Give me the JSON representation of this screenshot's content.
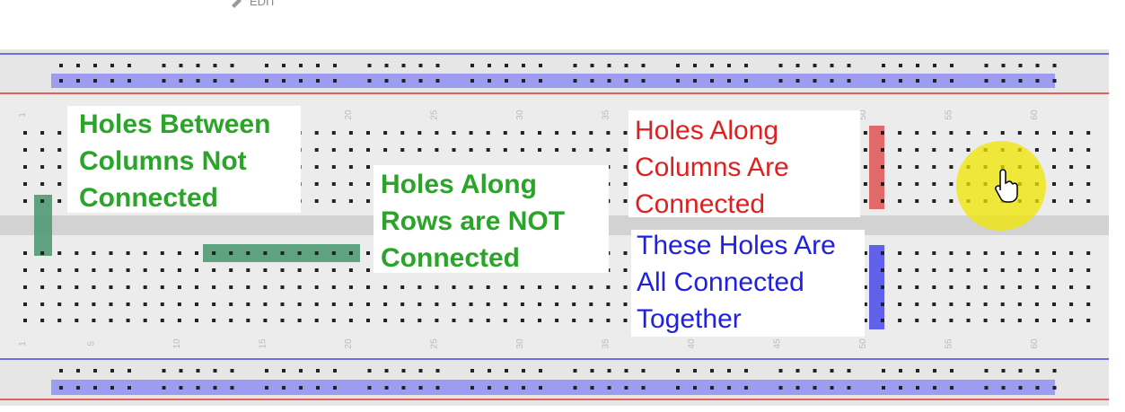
{
  "toolbar": {
    "edit": "EDIT"
  },
  "column_numbers": [
    "1",
    "5",
    "10",
    "15",
    "20",
    "25",
    "30",
    "35",
    "40",
    "45",
    "50",
    "55",
    "60"
  ],
  "annotations": [
    {
      "lines": [
        "Holes Between",
        "Columns Not",
        "Connected"
      ]
    },
    {
      "lines": [
        "Holes Along",
        "Rows are NOT",
        "Connected"
      ]
    },
    {
      "lines": [
        "Holes Along",
        "Columns Are",
        "Connected"
      ]
    },
    {
      "lines": [
        "These Holes Are",
        "All Connected",
        "Together"
      ]
    }
  ]
}
